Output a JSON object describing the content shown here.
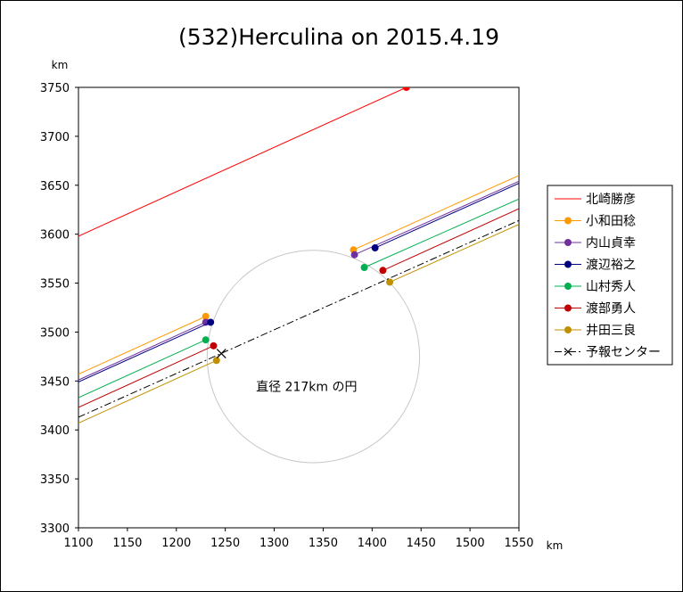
{
  "chart_data": {
    "type": "line",
    "title": "(532)Herculina on 2015.4.19",
    "xunit": "km",
    "yunit": "km",
    "xlim": [
      1100,
      1550
    ],
    "ylim": [
      3300,
      3750
    ],
    "xticks": [
      1100,
      1150,
      1200,
      1250,
      1300,
      1350,
      1400,
      1450,
      1500,
      1550
    ],
    "yticks": [
      3300,
      3350,
      3400,
      3450,
      3500,
      3550,
      3600,
      3650,
      3700,
      3750
    ],
    "grid": false,
    "legend_position": "right",
    "circle": {
      "center": [
        1340,
        3475
      ],
      "diameter": 217,
      "color": "#c8c8c8",
      "label": "直径 217km の円"
    },
    "series": [
      {
        "name": "北崎勝彦",
        "color": "#ff0000",
        "x": [
          1100,
          1435
        ],
        "y": [
          3598,
          3750
        ]
      },
      {
        "name": "小和田稔",
        "color": "#ff9900",
        "x": [
          1100,
          1230
        ],
        "y": [
          3457,
          3516
        ],
        "x2": [
          1381,
          1550
        ],
        "y2": [
          3584,
          3660
        ]
      },
      {
        "name": "内山貞幸",
        "color": "#7030a0",
        "x": [
          1100,
          1230
        ],
        "y": [
          3451,
          3510
        ],
        "x2": [
          1382,
          1550
        ],
        "y2": [
          3579,
          3654
        ]
      },
      {
        "name": "渡辺裕之",
        "color": "#000080",
        "x": [
          1100,
          1235
        ],
        "y": [
          3449,
          3510
        ],
        "x2": [
          1403,
          1550
        ],
        "y2": [
          3586,
          3652
        ]
      },
      {
        "name": "山村秀人",
        "color": "#00b050",
        "x": [
          1100,
          1230
        ],
        "y": [
          3433,
          3492
        ],
        "x2": [
          1392,
          1550
        ],
        "y2": [
          3566,
          3636
        ]
      },
      {
        "name": "渡部勇人",
        "color": "#c00000",
        "x": [
          1100,
          1238
        ],
        "y": [
          3423,
          3486
        ],
        "x2": [
          1411,
          1550
        ],
        "y2": [
          3563,
          3626
        ]
      },
      {
        "name": "井田三良",
        "color": "#c09000",
        "x": [
          1100,
          1241
        ],
        "y": [
          3407,
          3471
        ],
        "x2": [
          1418,
          1550
        ],
        "y2": [
          3551,
          3610
        ]
      },
      {
        "name": "予報センター",
        "color": "#000000",
        "dash": "dashdot",
        "x": [
          1100,
          1550
        ],
        "y": [
          3413,
          3614
        ],
        "marker": [
          1246,
          3478
        ]
      }
    ]
  }
}
